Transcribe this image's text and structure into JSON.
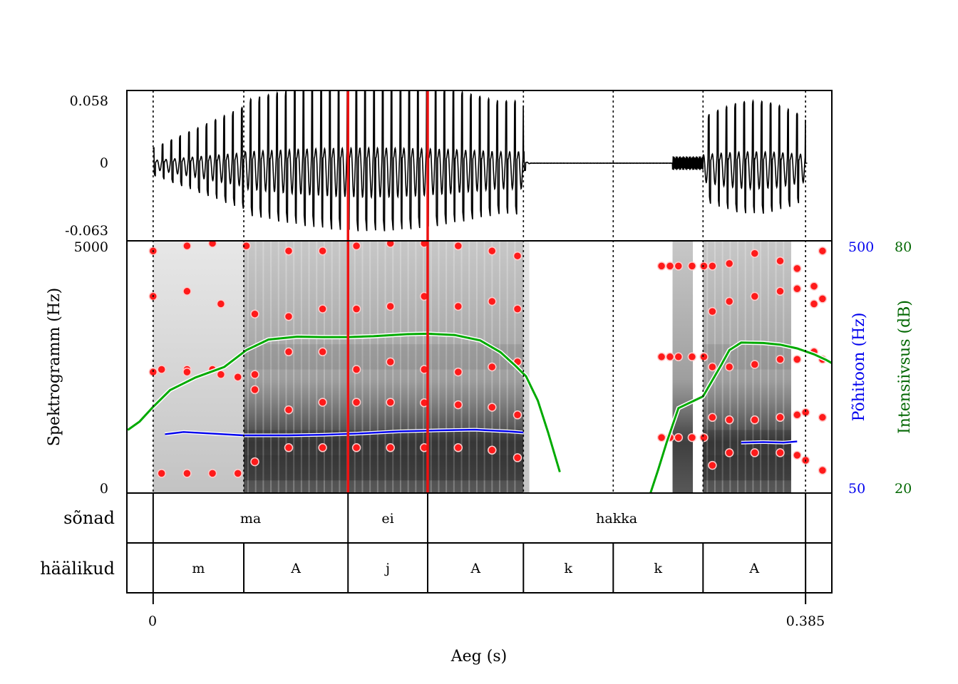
{
  "chart_data": {
    "type": "line",
    "title": "",
    "xlabel": "Aeg (s)",
    "xlim": [
      -0.0155,
      0.4005
    ],
    "x_ticks": [
      "0",
      "0.385"
    ],
    "boundaries_s": [
      0.0,
      0.0535,
      0.115,
      0.162,
      0.2185,
      0.2715,
      0.3245,
      0.385
    ],
    "selection_s": [
      0.115,
      0.162
    ],
    "waveform": {
      "ylabel_ticks": {
        "max": "0.058",
        "zero": "0",
        "min": "-0.063"
      },
      "ylim": [
        -0.063,
        0.058
      ]
    },
    "spectrogram": {
      "ylabel": "Spektrogramm (Hz)",
      "ylim": [
        0,
        5000
      ],
      "tick_top": "5000",
      "tick_bottom": "0"
    },
    "pitch": {
      "axis_label": "Põhitoon (Hz)",
      "ylim": [
        50,
        500
      ],
      "tick_top": "500",
      "tick_bottom": "50",
      "color": "#0000ee",
      "segments": [
        {
          "x": [
            0.007,
            0.018,
            0.035,
            0.053,
            0.08,
            0.1,
            0.12,
            0.145,
            0.17,
            0.19,
            0.21,
            0.2185
          ],
          "y": [
            155,
            159,
            156,
            153,
            153,
            154,
            156,
            160,
            162,
            163,
            160,
            158
          ]
        },
        {
          "x": [
            0.347,
            0.36,
            0.372,
            0.38
          ],
          "y": [
            140,
            141,
            140,
            142
          ]
        }
      ]
    },
    "intensity": {
      "axis_label": "Intensiivsus (dB)",
      "ylim": [
        20,
        80
      ],
      "tick_top": "80",
      "tick_bottom": "20",
      "color": "#00aa00",
      "x": [
        -0.015,
        -0.008,
        0.0,
        0.01,
        0.025,
        0.042,
        0.055,
        0.068,
        0.085,
        0.1,
        0.115,
        0.13,
        0.15,
        0.162,
        0.178,
        0.193,
        0.205,
        0.214,
        0.22,
        0.227,
        0.233,
        0.24
      ],
      "y": [
        35,
        37,
        40.5,
        44.5,
        47.5,
        50,
        54,
        56.5,
        57.2,
        57.1,
        57.1,
        57.3,
        57.8,
        57.9,
        57.6,
        56.3,
        53.5,
        50.2,
        47.8,
        42,
        34.5,
        25
      ],
      "x2": [
        0.2935,
        0.298,
        0.303,
        0.31,
        0.3245,
        0.335,
        0.34,
        0.347,
        0.36,
        0.37,
        0.38,
        0.39,
        0.397,
        0.401
      ],
      "y2": [
        20,
        25.5,
        32,
        40.2,
        43,
        50.3,
        54,
        55.8,
        55.7,
        55.3,
        54.4,
        53,
        51.7,
        50.8
      ]
    },
    "formant_tracks": [
      {
        "x": [
          0.005,
          0.02,
          0.035,
          0.05,
          0.06,
          0.08,
          0.1,
          0.12,
          0.14,
          0.16,
          0.18,
          0.2,
          0.215,
          0.33,
          0.34,
          0.355,
          0.37,
          0.38,
          0.385,
          0.395
        ],
        "y": [
          390,
          390,
          390,
          390,
          620,
          900,
          900,
          900,
          900,
          900,
          900,
          850,
          700,
          550,
          800,
          800,
          800,
          750,
          650,
          450
        ]
      },
      {
        "x": [
          0.005,
          0.02,
          0.035,
          0.05,
          0.06,
          0.08,
          0.1,
          0.12,
          0.14,
          0.16,
          0.18,
          0.2,
          0.215,
          0.33,
          0.34,
          0.355,
          0.37,
          0.38,
          0.385,
          0.395
        ],
        "y": [
          2450,
          2450,
          2450,
          2300,
          2050,
          1650,
          1800,
          1800,
          1800,
          1790,
          1750,
          1700,
          1550,
          1500,
          1450,
          1450,
          1500,
          1550,
          1600,
          1500
        ]
      },
      {
        "x": [
          0.0,
          0.02,
          0.04,
          0.06,
          0.08,
          0.1,
          0.12,
          0.14,
          0.16,
          0.18,
          0.2,
          0.215,
          0.33,
          0.34,
          0.355,
          0.37,
          0.38,
          0.39,
          0.395
        ],
        "y": [
          2400,
          2400,
          2350,
          2350,
          2800,
          2800,
          2450,
          2600,
          2450,
          2400,
          2500,
          2600,
          2500,
          2500,
          2550,
          2650,
          2650,
          2800,
          2650
        ]
      },
      {
        "x": [
          0.0,
          0.02,
          0.04,
          0.06,
          0.08,
          0.1,
          0.12,
          0.14,
          0.16,
          0.18,
          0.2,
          0.215,
          0.33,
          0.34,
          0.355,
          0.37,
          0.38,
          0.39,
          0.395
        ],
        "y": [
          3900,
          4000,
          3750,
          3550,
          3500,
          3650,
          3650,
          3700,
          3900,
          3700,
          3800,
          3650,
          3600,
          3800,
          3900,
          4000,
          4050,
          3750,
          3850
        ]
      },
      {
        "x": [
          0.0,
          0.02,
          0.035,
          0.055,
          0.08,
          0.1,
          0.12,
          0.14,
          0.16,
          0.18,
          0.2,
          0.215,
          0.33,
          0.34,
          0.355,
          0.37,
          0.38,
          0.39,
          0.395
        ],
        "y": [
          4800,
          4900,
          4950,
          4900,
          4800,
          4800,
          4900,
          4950,
          4950,
          4900,
          4800,
          4700,
          4500,
          4550,
          4750,
          4600,
          4450,
          4100,
          4800
        ]
      },
      {
        "x": [
          0.3,
          0.305,
          0.31,
          0.318,
          0.325
        ],
        "y": [
          1100,
          1100,
          1100,
          1100,
          1100
        ]
      },
      {
        "x": [
          0.3,
          0.305,
          0.31,
          0.318,
          0.325
        ],
        "y": [
          4500,
          4500,
          4500,
          4500,
          4500
        ]
      },
      {
        "x": [
          0.3,
          0.305,
          0.31,
          0.318,
          0.325
        ],
        "y": [
          2700,
          2700,
          2700,
          2700,
          2700
        ]
      }
    ],
    "tiers": [
      {
        "name": "sõnad",
        "intervals": [
          {
            "label": "ma",
            "start": 0.0,
            "end": 0.115
          },
          {
            "label": "ei",
            "start": 0.115,
            "end": 0.162
          },
          {
            "label": "hakka",
            "start": 0.162,
            "end": 0.385
          }
        ]
      },
      {
        "name": "häälikud",
        "intervals": [
          {
            "label": "m",
            "start": 0.0,
            "end": 0.0535
          },
          {
            "label": "A",
            "start": 0.0535,
            "end": 0.115
          },
          {
            "label": "j",
            "start": 0.115,
            "end": 0.162
          },
          {
            "label": "A",
            "start": 0.162,
            "end": 0.2185
          },
          {
            "label": "k",
            "start": 0.2185,
            "end": 0.2715
          },
          {
            "label": "k",
            "start": 0.2715,
            "end": 0.3245
          },
          {
            "label": "A",
            "start": 0.3245,
            "end": 0.385
          }
        ]
      }
    ]
  }
}
